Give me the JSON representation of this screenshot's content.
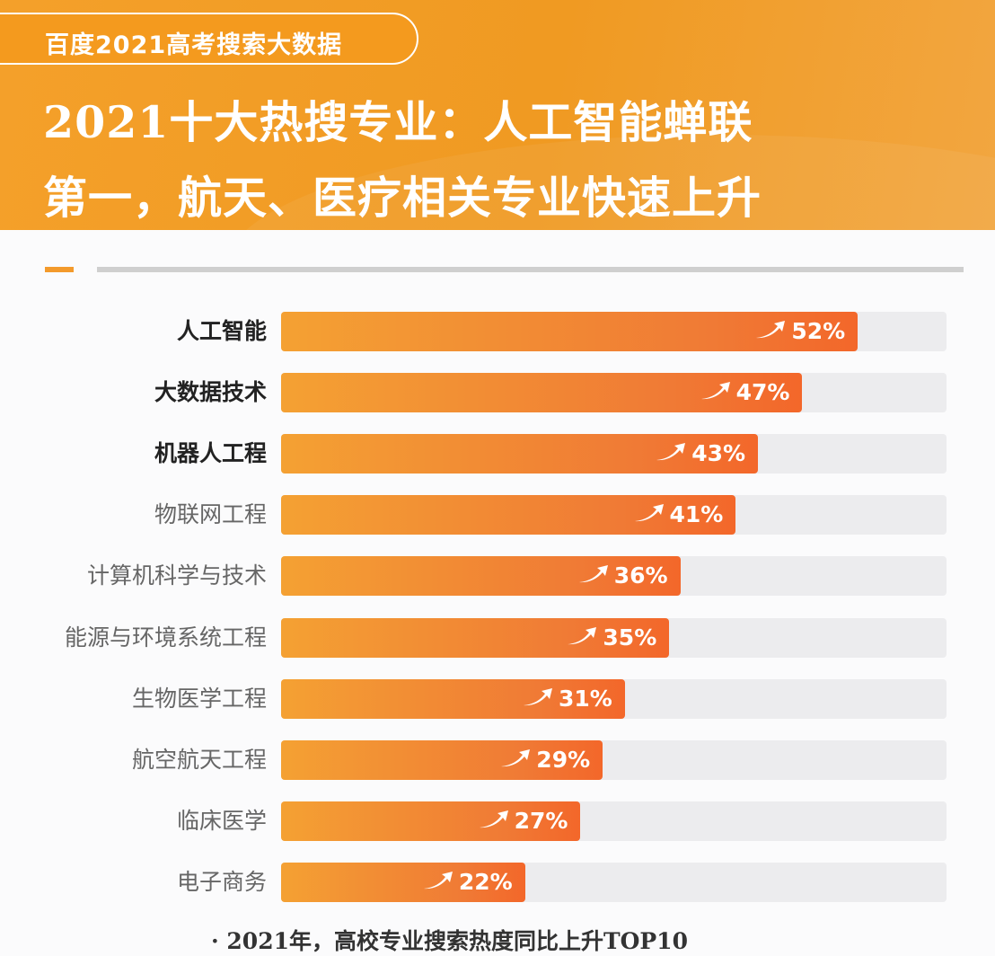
{
  "header": {
    "badge": "百度2021高考搜索大数据",
    "title_line1": "2021十大热搜专业：人工智能蝉联",
    "title_line2": "第一，航天、医疗相关专业快速上升",
    "colors": {
      "header": "#f09a22",
      "bar_start": "#f4a133",
      "bar_end": "#f3672a",
      "track": "#ececee"
    }
  },
  "chart_data": {
    "type": "bar",
    "orientation": "horizontal",
    "categories": [
      "人工智能",
      "大数据技术",
      "机器人工程",
      "物联网工程",
      "计算机科学与技术",
      "能源与环境系统工程",
      "生物医学工程",
      "航空航天工程",
      "临床医学",
      "电子商务"
    ],
    "values": [
      52,
      47,
      43,
      41,
      36,
      35,
      31,
      29,
      27,
      22
    ],
    "value_labels": [
      "52%",
      "47%",
      "43%",
      "41%",
      "36%",
      "35%",
      "31%",
      "29%",
      "27%",
      "22%"
    ],
    "bold_categories": 3,
    "xlim": [
      0,
      60
    ],
    "unit": "%",
    "icon": "trend-up-arrow-icon",
    "grid": false
  },
  "footer": {
    "note": "· 2021年，高校专业搜索热度同比上升TOP10"
  }
}
